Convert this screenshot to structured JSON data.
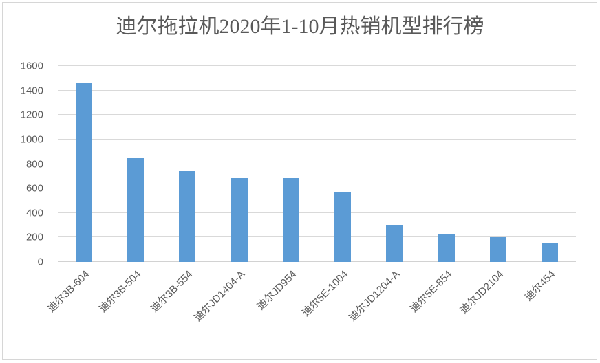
{
  "window": {
    "background": "#ffffff",
    "border_color": "#d6d6d6"
  },
  "chart_data": {
    "type": "bar",
    "title": "迪尔拖拉机2020年1-10月热销机型排行榜",
    "categories": [
      "迪尔3B-604",
      "迪尔3B-504",
      "迪尔3B-554",
      "迪尔JD1404-A",
      "迪尔JD954",
      "迪尔5E-1004",
      "迪尔JD1204-A",
      "迪尔5E-854",
      "迪尔JD2104",
      "迪尔454"
    ],
    "values": [
      1460,
      850,
      740,
      685,
      685,
      570,
      300,
      225,
      200,
      160
    ],
    "xlabel": "",
    "ylabel": "",
    "ylim": [
      0,
      1600
    ],
    "yticks": [
      0,
      200,
      400,
      600,
      800,
      1000,
      1200,
      1400,
      1600
    ],
    "grid": true,
    "legend": "none",
    "bar_color": "#5b9bd5",
    "gridline_color": "#d9d9d9",
    "axis_line_color": "#d2d2d2",
    "text_color": "#595959"
  }
}
